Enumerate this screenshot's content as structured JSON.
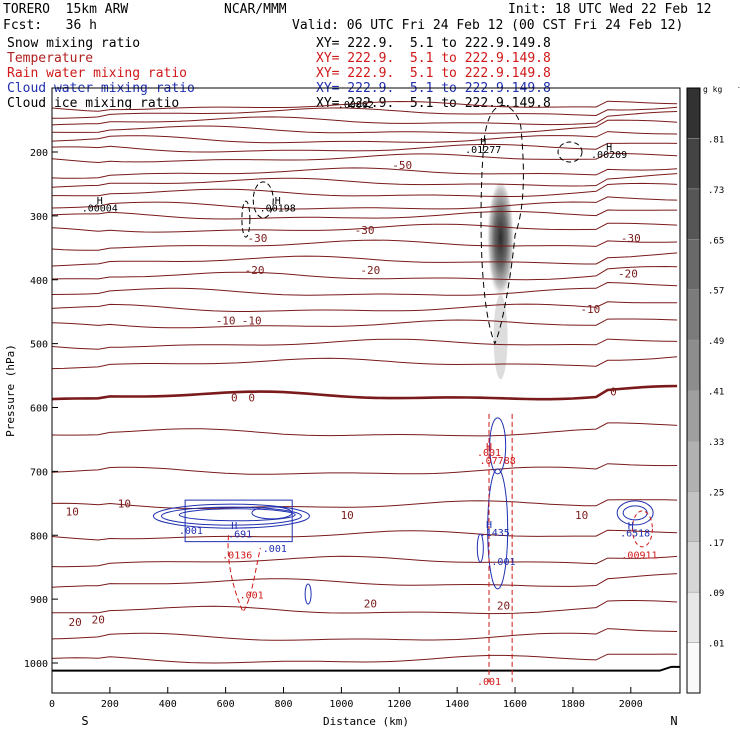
{
  "header": {
    "model": "TORERO  15km ARW",
    "org": "NCAR/MMM",
    "init": "Init: 18 UTC Wed 22 Feb 12",
    "fcst": "Fcst:   36 h",
    "valid": "Valid: 06 UTC Fri 24 Feb 12 (00 CST Fri 24 Feb 12)"
  },
  "fields": [
    {
      "name": "Snow mixing ratio",
      "xy": "XY= 222.9.  5.1 to 222.9.149.8",
      "color": "#000000"
    },
    {
      "name": "Temperature",
      "xy": "XY= 222.9.  5.1 to 222.9.149.8",
      "color": "#b02020"
    },
    {
      "name": "Rain water mixing ratio",
      "xy": "XY= 222.9.  5.1 to 222.9.149.8",
      "color": "#d01818"
    },
    {
      "name": "Cloud water mixing ratio",
      "xy": "XY= 222.9.  5.1 to 222.9.149.8",
      "color": "#2030b0"
    },
    {
      "name": "Cloud ice mixing ratio",
      "xy": "XY= 222.9.  5.1 to 222.9.149.8",
      "color": "#000000"
    }
  ],
  "chart_data": {
    "type": "contour-cross-section",
    "xlabel": "Distance (km)",
    "ylabel": "Pressure (hPa)",
    "xlim": [
      0,
      2170
    ],
    "ylim": [
      1050,
      100
    ],
    "xticks": [
      0,
      200,
      400,
      600,
      800,
      1000,
      1200,
      1400,
      1600,
      1800,
      2000
    ],
    "yticks": [
      200,
      300,
      400,
      500,
      600,
      700,
      800,
      900,
      1000
    ],
    "x_end_labels": {
      "left": "S",
      "right": "N"
    },
    "colorbar": {
      "unit": "g kg",
      "unit_exp": "-1",
      "labels": [
        ".01",
        ".09",
        ".17",
        ".25",
        ".33",
        ".41",
        ".49",
        ".57",
        ".65",
        ".73",
        ".81"
      ]
    },
    "temperature_isotherms": [
      {
        "value": 10,
        "p": 753,
        "label_x": [
          120,
          620
        ]
      },
      {
        "value": 0,
        "p": 582,
        "label_x": [
          600,
          640,
          1940
        ]
      },
      {
        "value": -10,
        "p": 487,
        "label_x": [
          600,
          700,
          1880
        ]
      },
      {
        "value": -20,
        "p": 412,
        "label_x": [
          580,
          1080,
          1980
        ]
      },
      {
        "value": -30,
        "p": 345,
        "label_x": [
          640,
          1070,
          1990
        ]
      },
      {
        "value": -50,
        "p": 237,
        "label_x": [
          1170
        ]
      },
      {
        "value": 20,
        "p": 918,
        "label_x": [
          120,
          1070,
          1560
        ]
      }
    ],
    "temperature_labels": [
      {
        "text": "10",
        "x": 70,
        "p": 763
      },
      {
        "text": "10",
        "x": 250,
        "p": 750
      },
      {
        "text": "10",
        "x": 1020,
        "p": 768
      },
      {
        "text": "10",
        "x": 1830,
        "p": 768
      },
      {
        "text": "0",
        "x": 630,
        "p": 584
      },
      {
        "text": "0",
        "x": 690,
        "p": 584
      },
      {
        "text": "0",
        "x": 1940,
        "p": 575
      },
      {
        "text": "-10",
        "x": 600,
        "p": 464
      },
      {
        "text": "-10",
        "x": 690,
        "p": 464
      },
      {
        "text": "-10",
        "x": 1860,
        "p": 446
      },
      {
        "text": "-20",
        "x": 700,
        "p": 385
      },
      {
        "text": "-20",
        "x": 1100,
        "p": 385
      },
      {
        "text": "-20",
        "x": 1990,
        "p": 390
      },
      {
        "text": "-30",
        "x": 710,
        "p": 335
      },
      {
        "text": "-30",
        "x": 1080,
        "p": 322
      },
      {
        "text": "-30",
        "x": 2000,
        "p": 335
      },
      {
        "text": "-50",
        "x": 1210,
        "p": 220
      },
      {
        "text": "20",
        "x": 80,
        "p": 936
      },
      {
        "text": "20",
        "x": 160,
        "p": 932
      },
      {
        "text": "20",
        "x": 1100,
        "p": 907
      },
      {
        "text": "20",
        "x": 1560,
        "p": 910
      }
    ],
    "maxima_labels": [
      {
        "text": "H",
        "x": 165,
        "p": 275,
        "color": "#000000"
      },
      {
        "text": ".00004",
        "x": 165,
        "p": 287,
        "color": "#000000"
      },
      {
        "text": "H",
        "x": 780,
        "p": 275,
        "color": "#000000"
      },
      {
        "text": ".00198",
        "x": 780,
        "p": 287,
        "color": "#000000"
      },
      {
        "text": "H",
        "x": 1490,
        "p": 183,
        "color": "#000000"
      },
      {
        "text": ".01277",
        "x": 1490,
        "p": 195,
        "color": "#000000"
      },
      {
        "text": "H",
        "x": 1925,
        "p": 191,
        "color": "#000000"
      },
      {
        "text": ".00209",
        "x": 1925,
        "p": 203,
        "color": "#000000"
      },
      {
        "text": ".00062",
        "x": 1050,
        "p": 125,
        "color": "#000000"
      },
      {
        "text": "H",
        "x": 630,
        "p": 784,
        "color": "#2030b0"
      },
      {
        "text": ".691",
        "x": 650,
        "p": 797,
        "color": "#2030b0"
      },
      {
        "text": ".001",
        "x": 480,
        "p": 792,
        "color": "#2030b0"
      },
      {
        "text": ".001",
        "x": 770,
        "p": 820,
        "color": "#2030b0"
      },
      {
        "text": ".0136",
        "x": 640,
        "p": 830,
        "color": "#d01818"
      },
      {
        "text": ".001",
        "x": 690,
        "p": 893,
        "color": "#d01818"
      },
      {
        "text": "H",
        "x": 1510,
        "p": 660,
        "color": "#d01818"
      },
      {
        "text": ".001",
        "x": 1510,
        "p": 670,
        "color": "#d01818"
      },
      {
        "text": ".07788",
        "x": 1540,
        "p": 682,
        "color": "#d01818"
      },
      {
        "text": "H",
        "x": 1510,
        "p": 782,
        "color": "#2030b0"
      },
      {
        "text": ".1435",
        "x": 1530,
        "p": 795,
        "color": "#2030b0"
      },
      {
        "text": ".001",
        "x": 1560,
        "p": 840,
        "color": "#2030b0"
      },
      {
        "text": "H",
        "x": 2000,
        "p": 784,
        "color": "#2030b0"
      },
      {
        "text": ".6518",
        "x": 2015,
        "p": 796,
        "color": "#2030b0"
      },
      {
        "text": ".00911",
        "x": 2030,
        "p": 830,
        "color": "#d01818"
      },
      {
        "text": ".001",
        "x": 1510,
        "p": 1028,
        "color": "#d01818"
      }
    ],
    "snow_max": {
      "x": 1550,
      "p": 330,
      "value_gkg": 0.81
    }
  }
}
